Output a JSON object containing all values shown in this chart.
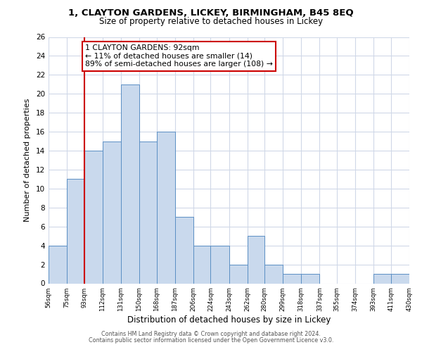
{
  "title1": "1, CLAYTON GARDENS, LICKEY, BIRMINGHAM, B45 8EQ",
  "title2": "Size of property relative to detached houses in Lickey",
  "xlabel": "Distribution of detached houses by size in Lickey",
  "ylabel": "Number of detached properties",
  "bin_edges": [
    56,
    75,
    93,
    112,
    131,
    150,
    168,
    187,
    206,
    224,
    243,
    262,
    280,
    299,
    318,
    337,
    355,
    374,
    393,
    411,
    430
  ],
  "bin_counts": [
    4,
    11,
    14,
    15,
    21,
    15,
    16,
    7,
    4,
    4,
    2,
    5,
    2,
    1,
    1,
    0,
    0,
    0,
    1,
    1
  ],
  "bar_color": "#c9d9ed",
  "bar_edgecolor": "#5b8fc4",
  "vline_color": "#cc0000",
  "vline_x": 93,
  "annotation_line1": "1 CLAYTON GARDENS: 92sqm",
  "annotation_line2": "← 11% of detached houses are smaller (14)",
  "annotation_line3": "89% of semi-detached houses are larger (108) →",
  "annotation_box_edgecolor": "#cc0000",
  "ylim": [
    0,
    26
  ],
  "yticks": [
    0,
    2,
    4,
    6,
    8,
    10,
    12,
    14,
    16,
    18,
    20,
    22,
    24,
    26
  ],
  "tick_labels": [
    "56sqm",
    "75sqm",
    "93sqm",
    "112sqm",
    "131sqm",
    "150sqm",
    "168sqm",
    "187sqm",
    "206sqm",
    "224sqm",
    "243sqm",
    "262sqm",
    "280sqm",
    "299sqm",
    "318sqm",
    "337sqm",
    "355sqm",
    "374sqm",
    "393sqm",
    "411sqm",
    "430sqm"
  ],
  "footer1": "Contains HM Land Registry data © Crown copyright and database right 2024.",
  "footer2": "Contains public sector information licensed under the Open Government Licence v3.0.",
  "background_color": "#ffffff",
  "grid_color": "#d0d8e8",
  "title1_fontsize": 9.5,
  "title2_fontsize": 8.5,
  "ylabel_fontsize": 8.0,
  "xlabel_fontsize": 8.5,
  "annot_fontsize": 7.8,
  "footer_fontsize": 5.8,
  "ytick_fontsize": 7.5,
  "xtick_fontsize": 6.2
}
